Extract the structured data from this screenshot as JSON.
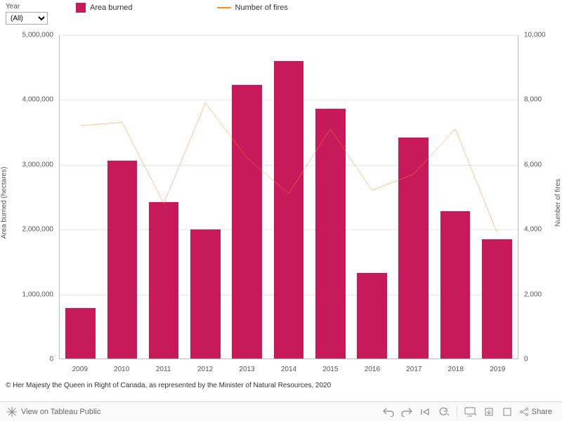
{
  "filter": {
    "label": "Year",
    "value": "(All)"
  },
  "legend": {
    "area": {
      "label": "Area burned",
      "color": "#c8195b"
    },
    "fires": {
      "label": "Number of fires",
      "color": "#ff8c1a"
    }
  },
  "chart": {
    "type": "bar+line",
    "y1": {
      "label": "Area burned (hectares)",
      "max": 5000000,
      "ticks": [
        0,
        1000000,
        2000000,
        3000000,
        4000000,
        5000000
      ],
      "tick_labels": [
        "0",
        "1,000,000",
        "2,000,000",
        "3,000,000",
        "4,000,000",
        "5,000,000"
      ]
    },
    "y2": {
      "label": "Number of fires",
      "max": 10000,
      "ticks": [
        0,
        2000,
        4000,
        6000,
        8000,
        10000
      ],
      "tick_labels": [
        "0",
        "2,000",
        "4,000",
        "6,000",
        "8,000",
        "10,000"
      ]
    },
    "categories": [
      "2009",
      "2010",
      "2011",
      "2012",
      "2013",
      "2014",
      "2015",
      "2016",
      "2017",
      "2018",
      "2019"
    ],
    "area_burned": [
      780000,
      3060000,
      2420000,
      2000000,
      4230000,
      4600000,
      3860000,
      1320000,
      3420000,
      2280000,
      1840000
    ],
    "num_fires": [
      7200,
      7300,
      4800,
      7900,
      6200,
      5100,
      7100,
      5200,
      5700,
      7100,
      3900
    ],
    "bar_color": "#c8195b",
    "line_color": "#ff8c1a",
    "line_width": 2,
    "grid_color": "#e8e8e8",
    "background_color": "#ffffff"
  },
  "copyright": "© Her Majesty the Queen in Right of Canada, as represented by the Minister of Natural Resources, 2020",
  "footer": {
    "view_label": "View on Tableau Public",
    "share_label": "Share"
  }
}
